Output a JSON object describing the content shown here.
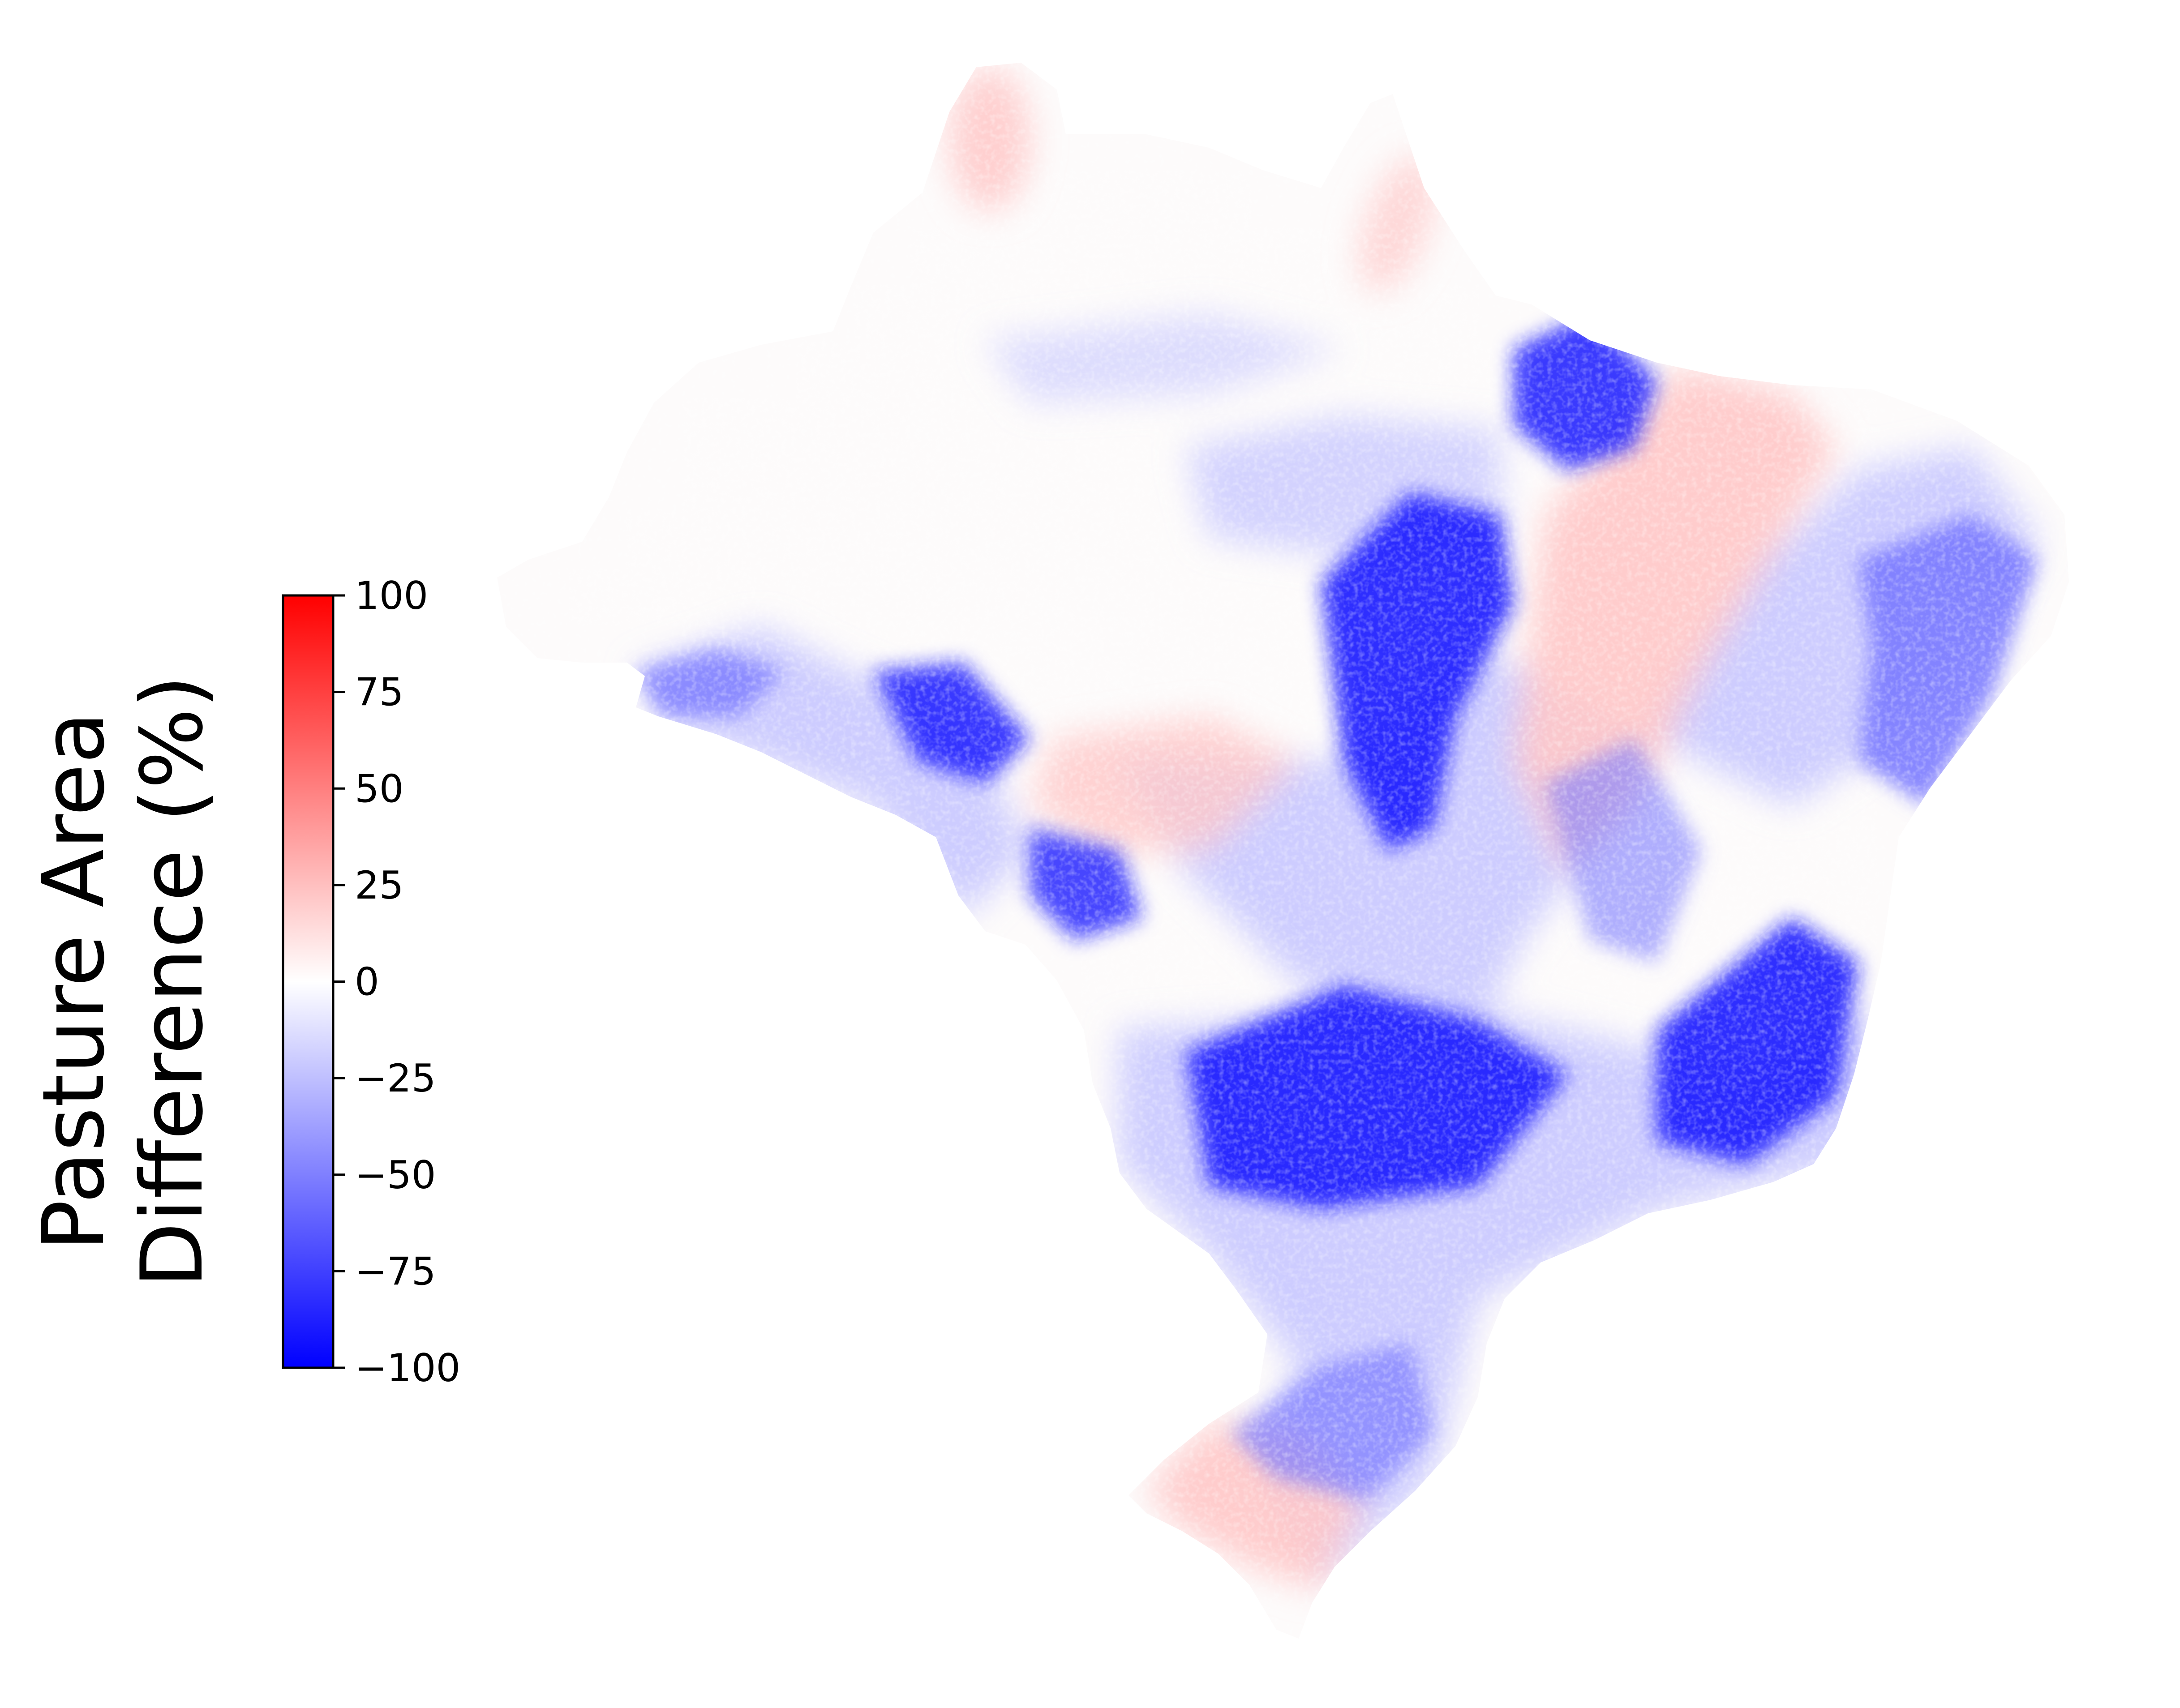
{
  "colorbar": {
    "label_line1": "Pasture Area",
    "label_line2": "Difference (%)",
    "min": -100,
    "max": 100,
    "ticks": [
      {
        "value": 100,
        "label": "100"
      },
      {
        "value": 75,
        "label": "75"
      },
      {
        "value": 50,
        "label": "50"
      },
      {
        "value": 25,
        "label": "25"
      },
      {
        "value": 0,
        "label": "0"
      },
      {
        "value": -25,
        "label": "−25"
      },
      {
        "value": -50,
        "label": "−50"
      },
      {
        "value": -75,
        "label": "−75"
      },
      {
        "value": -100,
        "label": "−100"
      }
    ],
    "colormap": [
      "#0000ff",
      "#ffffff",
      "#ff0000"
    ]
  },
  "map": {
    "region": "Brazil",
    "colors": {
      "strong_loss": "#1a1aff",
      "moderate_loss": "#7a7aff",
      "light_loss": "#c8c8ff",
      "no_change": "#fdfbfb",
      "light_gain": "#ffc8c8",
      "moderate_gain": "#ff9a9a"
    }
  }
}
